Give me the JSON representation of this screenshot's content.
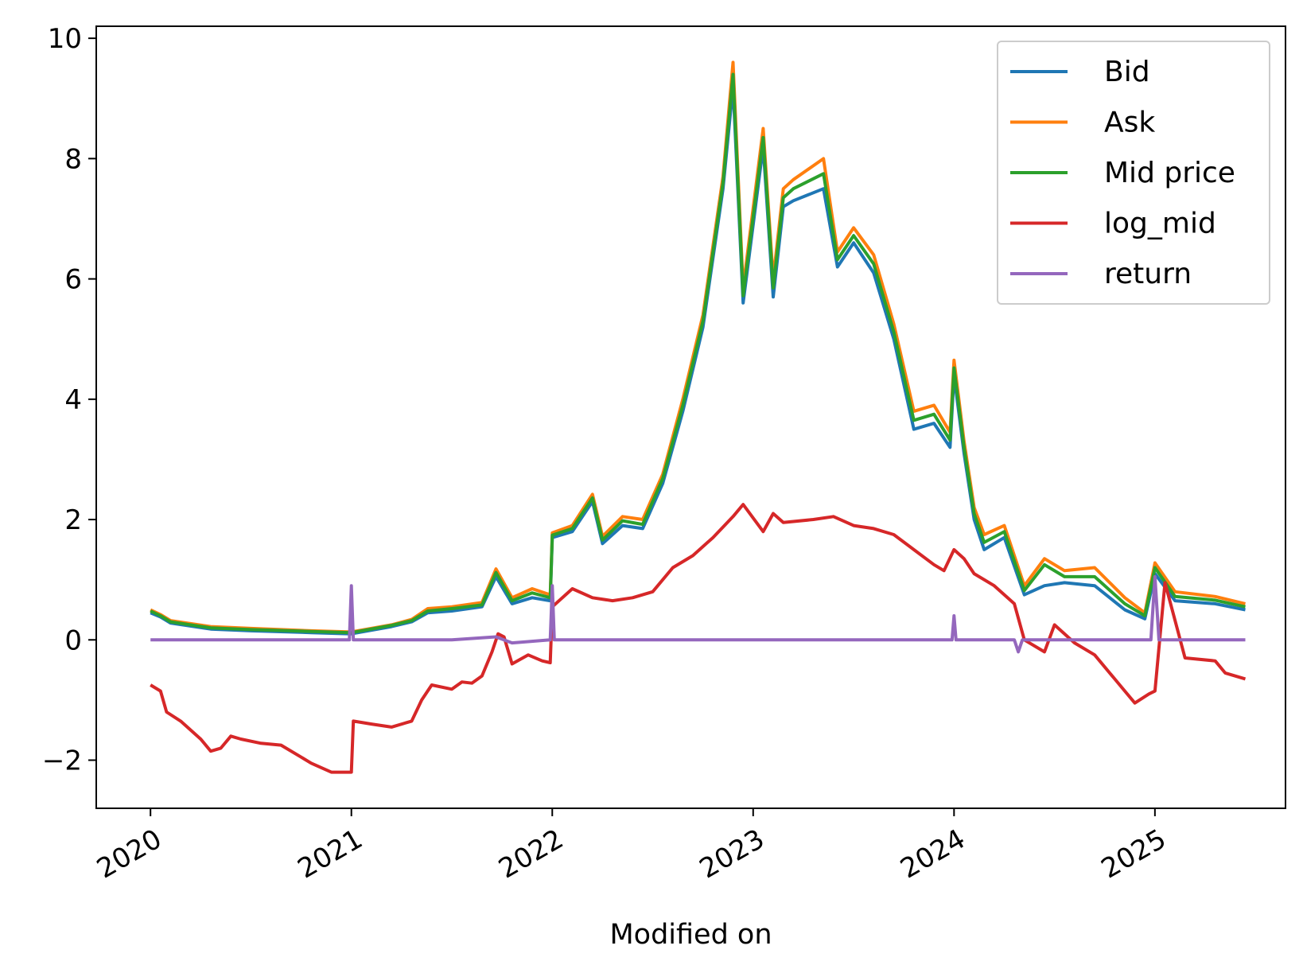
{
  "chart_data": {
    "type": "line",
    "title": "",
    "xlabel": "Modified on",
    "ylabel": "",
    "x_unit": "year",
    "xlim": [
      2019.73,
      2025.65
    ],
    "ylim": [
      -2.8,
      10.2
    ],
    "xticks": [
      2020,
      2021,
      2022,
      2023,
      2024,
      2025
    ],
    "xtick_labels": [
      "2020",
      "2021",
      "2022",
      "2023",
      "2024",
      "2025"
    ],
    "yticks": [
      -2,
      0,
      2,
      4,
      6,
      8,
      10
    ],
    "ytick_labels": [
      "−2",
      "0",
      "2",
      "4",
      "6",
      "8",
      "10"
    ],
    "grid": false,
    "legend_position": "top-right",
    "series": [
      {
        "name": "Bid",
        "color": "#1f77b4",
        "x": [
          2020.0,
          2020.05,
          2020.1,
          2020.3,
          2020.5,
          2020.8,
          2021.0,
          2021.2,
          2021.3,
          2021.38,
          2021.5,
          2021.65,
          2021.72,
          2021.8,
          2021.9,
          2021.99,
          2022.0,
          2022.1,
          2022.2,
          2022.25,
          2022.35,
          2022.45,
          2022.55,
          2022.65,
          2022.75,
          2022.85,
          2022.9,
          2022.95,
          2023.05,
          2023.1,
          2023.15,
          2023.2,
          2023.35,
          2023.42,
          2023.5,
          2023.6,
          2023.7,
          2023.8,
          2023.9,
          2023.98,
          2024.0,
          2024.05,
          2024.1,
          2024.15,
          2024.25,
          2024.35,
          2024.45,
          2024.55,
          2024.7,
          2024.85,
          2024.95,
          2025.0,
          2025.1,
          2025.3,
          2025.45
        ],
        "y": [
          0.45,
          0.38,
          0.28,
          0.18,
          0.15,
          0.12,
          0.1,
          0.22,
          0.3,
          0.45,
          0.48,
          0.55,
          1.05,
          0.6,
          0.7,
          0.65,
          1.7,
          1.8,
          2.3,
          1.6,
          1.9,
          1.85,
          2.6,
          3.8,
          5.2,
          7.5,
          9.2,
          5.6,
          8.2,
          5.7,
          7.2,
          7.3,
          7.5,
          6.2,
          6.6,
          6.1,
          5.0,
          3.5,
          3.6,
          3.2,
          4.4,
          3.1,
          2.0,
          1.5,
          1.7,
          0.75,
          0.9,
          0.95,
          0.9,
          0.5,
          0.35,
          1.1,
          0.65,
          0.6,
          0.5
        ]
      },
      {
        "name": "Ask",
        "color": "#ff7f0e",
        "x": [
          2020.0,
          2020.05,
          2020.1,
          2020.3,
          2020.5,
          2020.8,
          2021.0,
          2021.2,
          2021.3,
          2021.38,
          2021.5,
          2021.65,
          2021.72,
          2021.8,
          2021.9,
          2021.99,
          2022.0,
          2022.1,
          2022.2,
          2022.25,
          2022.35,
          2022.45,
          2022.55,
          2022.65,
          2022.75,
          2022.85,
          2022.9,
          2022.95,
          2023.05,
          2023.1,
          2023.15,
          2023.2,
          2023.35,
          2023.42,
          2023.5,
          2023.6,
          2023.7,
          2023.8,
          2023.9,
          2023.98,
          2024.0,
          2024.05,
          2024.1,
          2024.15,
          2024.25,
          2024.35,
          2024.45,
          2024.55,
          2024.7,
          2024.85,
          2024.95,
          2025.0,
          2025.1,
          2025.3,
          2025.45
        ],
        "y": [
          0.5,
          0.42,
          0.32,
          0.22,
          0.19,
          0.15,
          0.13,
          0.25,
          0.34,
          0.52,
          0.55,
          0.62,
          1.18,
          0.7,
          0.85,
          0.75,
          1.78,
          1.9,
          2.42,
          1.72,
          2.05,
          2.0,
          2.75,
          4.0,
          5.4,
          7.7,
          9.6,
          5.85,
          8.5,
          6.0,
          7.5,
          7.65,
          8.0,
          6.45,
          6.85,
          6.4,
          5.25,
          3.8,
          3.9,
          3.45,
          4.65,
          3.3,
          2.2,
          1.75,
          1.9,
          0.9,
          1.35,
          1.15,
          1.2,
          0.7,
          0.45,
          1.28,
          0.8,
          0.72,
          0.6
        ]
      },
      {
        "name": "Mid price",
        "color": "#2ca02c",
        "x": [
          2020.0,
          2020.05,
          2020.1,
          2020.3,
          2020.5,
          2020.8,
          2021.0,
          2021.2,
          2021.3,
          2021.38,
          2021.5,
          2021.65,
          2021.72,
          2021.8,
          2021.9,
          2021.99,
          2022.0,
          2022.1,
          2022.2,
          2022.25,
          2022.35,
          2022.45,
          2022.55,
          2022.65,
          2022.75,
          2022.85,
          2022.9,
          2022.95,
          2023.05,
          2023.1,
          2023.15,
          2023.2,
          2023.35,
          2023.42,
          2023.5,
          2023.6,
          2023.7,
          2023.8,
          2023.9,
          2023.98,
          2024.0,
          2024.05,
          2024.1,
          2024.15,
          2024.25,
          2024.35,
          2024.45,
          2024.55,
          2024.7,
          2024.85,
          2024.95,
          2025.0,
          2025.1,
          2025.3,
          2025.45
        ],
        "y": [
          0.48,
          0.4,
          0.3,
          0.2,
          0.17,
          0.14,
          0.12,
          0.24,
          0.32,
          0.48,
          0.52,
          0.58,
          1.12,
          0.65,
          0.78,
          0.7,
          1.74,
          1.85,
          2.36,
          1.66,
          1.98,
          1.92,
          2.68,
          3.9,
          5.3,
          7.6,
          9.4,
          5.72,
          8.35,
          5.85,
          7.35,
          7.5,
          7.75,
          6.32,
          6.72,
          6.25,
          5.12,
          3.65,
          3.75,
          3.32,
          4.52,
          3.2,
          2.1,
          1.62,
          1.8,
          0.82,
          1.25,
          1.05,
          1.05,
          0.6,
          0.4,
          1.2,
          0.72,
          0.66,
          0.55
        ]
      },
      {
        "name": "log_mid",
        "color": "#d62728",
        "x": [
          2020.0,
          2020.05,
          2020.08,
          2020.15,
          2020.25,
          2020.3,
          2020.35,
          2020.4,
          2020.45,
          2020.55,
          2020.65,
          2020.75,
          2020.8,
          2020.9,
          2021.0,
          2021.01,
          2021.1,
          2021.2,
          2021.3,
          2021.35,
          2021.4,
          2021.5,
          2021.55,
          2021.6,
          2021.65,
          2021.7,
          2021.73,
          2021.76,
          2021.8,
          2021.88,
          2021.95,
          2021.99,
          2022.0,
          2022.1,
          2022.2,
          2022.3,
          2022.4,
          2022.5,
          2022.6,
          2022.7,
          2022.8,
          2022.9,
          2022.95,
          2023.05,
          2023.1,
          2023.15,
          2023.3,
          2023.4,
          2023.5,
          2023.6,
          2023.7,
          2023.8,
          2023.9,
          2023.95,
          2024.0,
          2024.05,
          2024.1,
          2024.2,
          2024.3,
          2024.35,
          2024.45,
          2024.5,
          2024.6,
          2024.7,
          2024.8,
          2024.85,
          2024.9,
          2024.97,
          2025.0,
          2025.05,
          2025.15,
          2025.3,
          2025.35,
          2025.45
        ],
        "y": [
          -0.75,
          -0.85,
          -1.2,
          -1.35,
          -1.65,
          -1.85,
          -1.8,
          -1.6,
          -1.65,
          -1.72,
          -1.75,
          -1.95,
          -2.05,
          -2.2,
          -2.2,
          -1.35,
          -1.4,
          -1.45,
          -1.35,
          -1.0,
          -0.75,
          -0.82,
          -0.7,
          -0.72,
          -0.6,
          -0.2,
          0.1,
          0.05,
          -0.4,
          -0.25,
          -0.35,
          -0.38,
          0.55,
          0.85,
          0.7,
          0.65,
          0.7,
          0.8,
          1.2,
          1.4,
          1.7,
          2.05,
          2.25,
          1.8,
          2.1,
          1.95,
          2.0,
          2.05,
          1.9,
          1.85,
          1.75,
          1.5,
          1.25,
          1.15,
          1.5,
          1.35,
          1.1,
          0.9,
          0.6,
          0.0,
          -0.2,
          0.25,
          -0.05,
          -0.25,
          -0.65,
          -0.85,
          -1.05,
          -0.9,
          -0.85,
          0.95,
          -0.3,
          -0.35,
          -0.55,
          -0.65
        ]
      },
      {
        "name": "return",
        "color": "#9467bd",
        "x": [
          2020.0,
          2020.5,
          2020.99,
          2021.0,
          2021.01,
          2021.5,
          2021.72,
          2021.8,
          2021.99,
          2022.0,
          2022.01,
          2022.5,
          2023.0,
          2023.5,
          2023.99,
          2024.0,
          2024.01,
          2024.3,
          2024.32,
          2024.34,
          2024.5,
          2024.98,
          2025.0,
          2025.02,
          2025.1,
          2025.45
        ],
        "y": [
          0.0,
          0.0,
          0.0,
          0.9,
          0.0,
          0.0,
          0.05,
          -0.05,
          0.0,
          0.9,
          0.0,
          0.0,
          0.0,
          0.0,
          0.0,
          0.4,
          0.0,
          0.0,
          -0.2,
          0.0,
          0.0,
          0.0,
          1.05,
          0.0,
          0.0,
          0.0
        ]
      }
    ]
  }
}
